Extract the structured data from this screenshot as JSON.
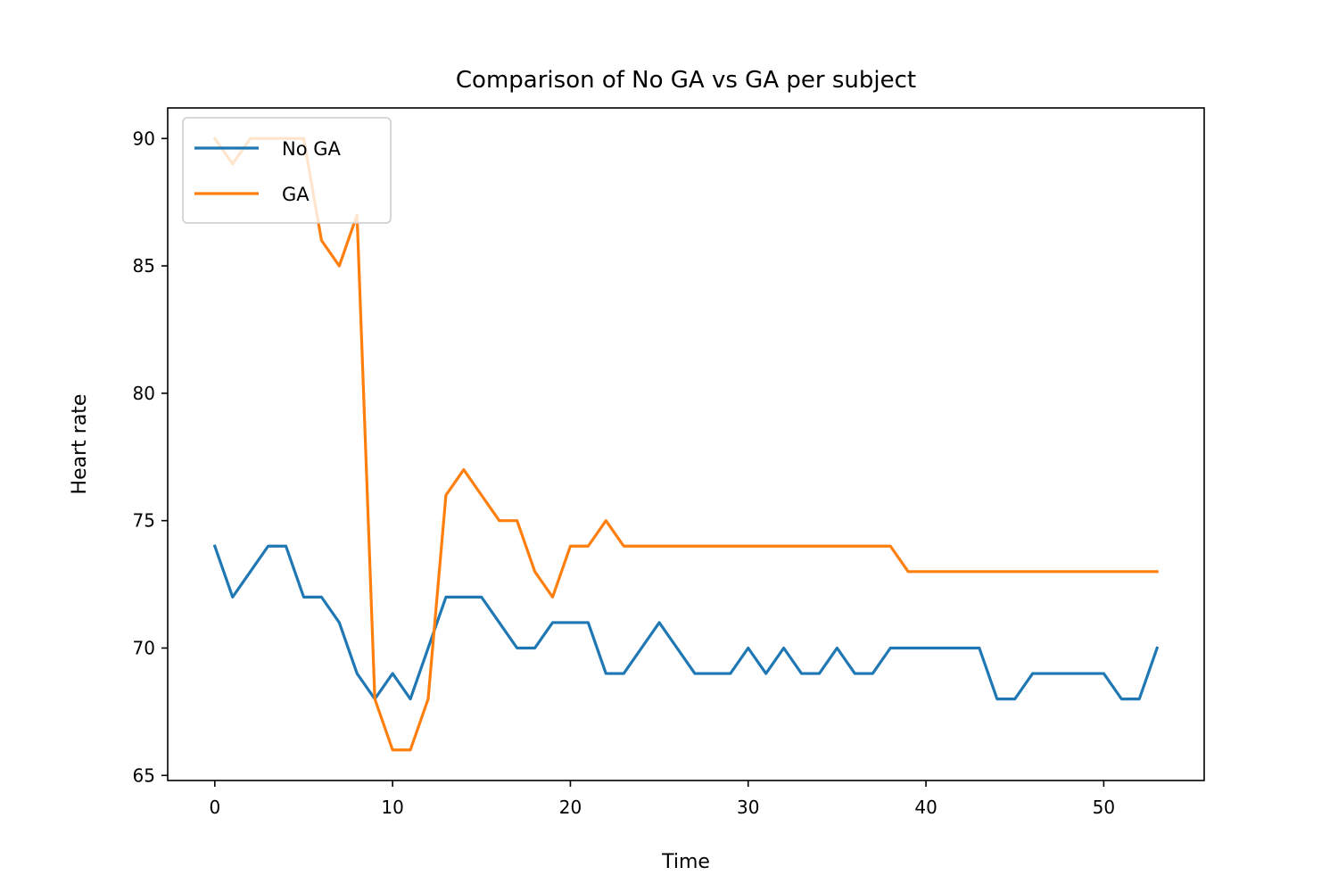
{
  "chart_data": {
    "type": "line",
    "title": "Comparison of No GA vs GA per subject",
    "xlabel": "Time",
    "ylabel": "Heart rate",
    "xlim": [
      -2.65,
      55.65
    ],
    "ylim": [
      64.8,
      91.2
    ],
    "xticks": [
      0,
      10,
      20,
      30,
      40,
      50
    ],
    "yticks": [
      65,
      70,
      75,
      80,
      85,
      90
    ],
    "grid": false,
    "legend_position": "upper left",
    "x": [
      0,
      1,
      2,
      3,
      4,
      5,
      6,
      7,
      8,
      9,
      10,
      11,
      12,
      13,
      14,
      15,
      16,
      17,
      18,
      19,
      20,
      21,
      22,
      23,
      24,
      25,
      26,
      27,
      28,
      29,
      30,
      31,
      32,
      33,
      34,
      35,
      36,
      37,
      38,
      39,
      40,
      41,
      42,
      43,
      44,
      45,
      46,
      47,
      48,
      49,
      50,
      51,
      52,
      53
    ],
    "series": [
      {
        "name": "No GA",
        "color": "#1f77b4",
        "values": [
          74,
          72,
          73,
          74,
          74,
          72,
          72,
          71,
          69,
          68,
          69,
          68,
          70,
          72,
          72,
          72,
          71,
          70,
          70,
          71,
          71,
          71,
          69,
          69,
          70,
          71,
          70,
          69,
          69,
          69,
          70,
          69,
          70,
          69,
          69,
          70,
          69,
          69,
          70,
          70,
          70,
          70,
          70,
          70,
          68,
          68,
          69,
          69,
          69,
          69,
          69,
          68,
          68,
          70
        ]
      },
      {
        "name": "GA",
        "color": "#ff7f0e",
        "values": [
          90,
          89,
          90,
          90,
          90,
          90,
          86,
          85,
          87,
          68,
          66,
          66,
          68,
          76,
          77,
          76,
          75,
          75,
          73,
          72,
          74,
          74,
          75,
          74,
          74,
          74,
          74,
          74,
          74,
          74,
          74,
          74,
          74,
          74,
          74,
          74,
          74,
          74,
          74,
          73,
          73,
          73,
          73,
          73,
          73,
          73,
          73,
          73,
          73,
          73,
          73,
          73,
          73,
          73
        ]
      }
    ]
  }
}
